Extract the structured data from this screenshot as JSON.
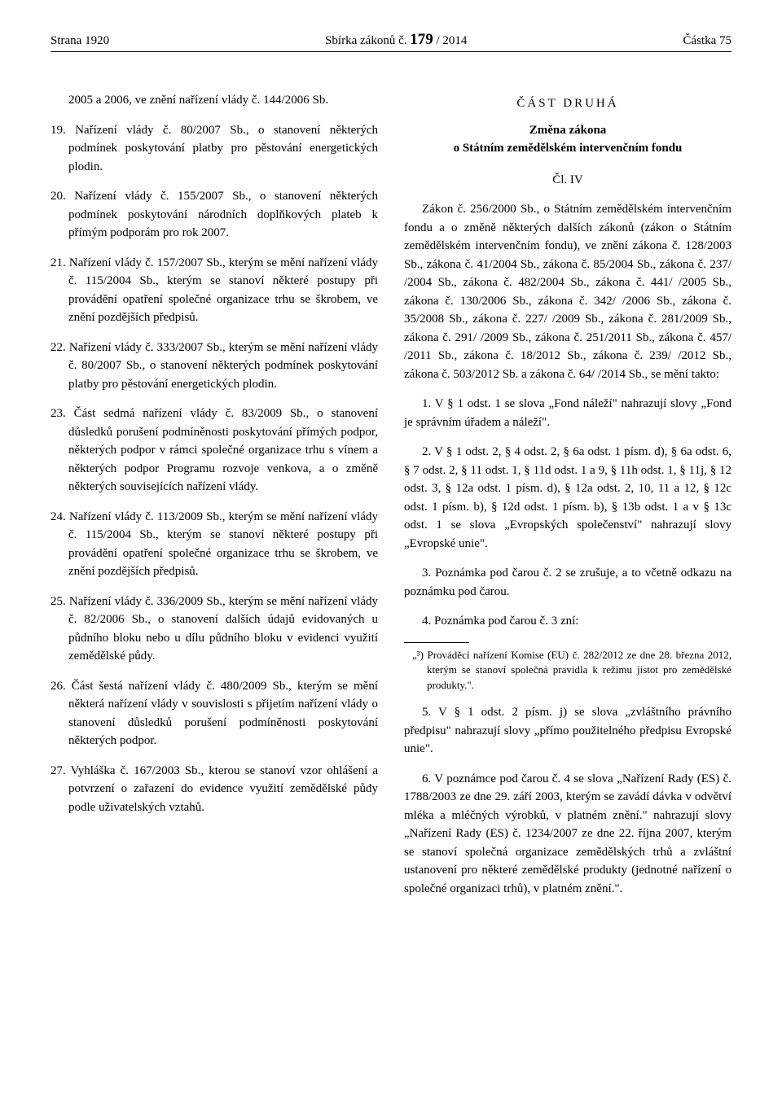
{
  "header": {
    "left": "Strana 1920",
    "center_prefix": "Sbírka zákonů č. ",
    "center_bold": "179",
    "center_suffix": " / 2014",
    "right": "Částka 75"
  },
  "left_intro": "2005 a 2006, ve znění nařízení vlády č. 144/2006 Sb.",
  "items": [
    {
      "n": "19.",
      "t": "Nařízení vlády č. 80/2007 Sb., o stanovení některých podmínek poskytování platby pro pěstování energetických plodin."
    },
    {
      "n": "20.",
      "t": "Nařízení vlády č. 155/2007 Sb., o stanovení některých podmínek poskytování národních doplňkových plateb k přímým podporám pro rok 2007."
    },
    {
      "n": "21.",
      "t": "Nařízení vlády č. 157/2007 Sb., kterým se mění nařízení vlády č. 115/2004 Sb., kterým se stanoví některé postupy při provádění opatření společné organizace trhu se škrobem, ve znění pozdějších předpisů."
    },
    {
      "n": "22.",
      "t": "Nařízení vlády č. 333/2007 Sb., kterým se mění nařízení vlády č. 80/2007 Sb., o stanovení některých podmínek poskytování platby pro pěstování energetických plodin."
    },
    {
      "n": "23.",
      "t": "Část sedmá nařízení vlády č. 83/2009 Sb., o stanovení důsledků porušení podmíněnosti poskytování přímých podpor, některých podpor v rámci společné organizace trhu s vínem a některých podpor Programu rozvoje venkova, a o změně některých souvisejících nařízení vlády."
    },
    {
      "n": "24.",
      "t": "Nařízení vlády č. 113/2009 Sb., kterým se mění nařízení vlády č. 115/2004 Sb., kterým se stanoví některé postupy při provádění opatření společné organizace trhu se škrobem, ve znění pozdějších předpisů."
    },
    {
      "n": "25.",
      "t": "Nařízení vlády č. 336/2009 Sb., kterým se mění nařízení vlády č. 82/2006 Sb., o stanovení dalších údajů evidovaných u půdního bloku nebo u dílu půdního bloku v evidenci využití zemědělské půdy."
    },
    {
      "n": "26.",
      "t": "Část šestá nařízení vlády č. 480/2009 Sb., kterým se mění některá nařízení vlády v souvislosti s přijetím nařízení vlády o stanovení důsledků porušení podmíněnosti poskytování některých podpor."
    },
    {
      "n": "27.",
      "t": "Vyhláška č. 167/2003 Sb., kterou se stanoví vzor ohlášení a potvrzení o zařazení do evidence využití zemědělské půdy podle uživatelských vztahů."
    }
  ],
  "part2": {
    "title": "ČÁST DRUHÁ",
    "subtitle_line1": "Změna zákona",
    "subtitle_line2": "o Státním zemědělském intervenčním fondu",
    "cl": "Čl. IV",
    "intro": "Zákon č. 256/2000 Sb., o Státním zemědělském intervenčním fondu a o změně některých dalších zákonů (zákon o Státním zemědělském intervenčním fondu), ve znění zákona č. 128/2003 Sb., zákona č. 41/2004 Sb., zákona č. 85/2004 Sb., zákona č. 237/ /2004 Sb., zákona č. 482/2004 Sb., zákona č. 441/ /2005 Sb., zákona č. 130/2006 Sb., zákona č. 342/ /2006 Sb., zákona č. 35/2008 Sb., zákona č. 227/ /2009 Sb., zákona č. 281/2009 Sb., zákona č. 291/ /2009 Sb., zákona č. 251/2011 Sb., zákona č. 457/ /2011 Sb., zákona č. 18/2012 Sb., zákona č. 239/ /2012 Sb., zákona č. 503/2012 Sb. a zákona č. 64/ /2014 Sb., se mění takto:",
    "paras": [
      "1. V § 1 odst. 1 se slova „Fond náleží\" nahrazují slovy „Fond je správním úřadem a náleží\".",
      "2. V § 1 odst. 2, § 4 odst. 2, § 6a odst. 1 písm. d), § 6a odst. 6, § 7 odst. 2, § 11 odst. 1, § 11d odst. 1 a 9, § 11h odst. 1, § 11j, § 12 odst. 3, § 12a odst. 1 písm. d), § 12a odst. 2, 10, 11 a 12, § 12c odst. 1 písm. b), § 12d odst. 1 písm. b), § 13b odst. 1 a v § 13c odst. 1 se slova „Evropských společenství\" nahrazují slovy „Evropské unie\".",
      "3. Poznámka pod čarou č. 2 se zrušuje, a to včetně odkazu na poznámku pod čarou.",
      "4. Poznámka pod čarou č. 3 zní:"
    ],
    "footnote": "„³) Prováděcí nařízení Komise (EU) č. 282/2012 ze dne 28. března 2012, kterým se stanoví společná pravidla k režimu jistot pro zemědělské produkty.\".",
    "paras2": [
      "5. V § 1 odst. 2 písm. j) se slova „zvláštního právního předpisu\" nahrazují slovy „přímo použitelného předpisu Evropské unie\".",
      "6. V poznámce pod čarou č. 4 se slova „Nařízení Rady (ES) č. 1788/2003 ze dne 29. září 2003, kterým se zavádí dávka v odvětví mléka a mléčných výrobků, v platném znění.\" nahrazují slovy „Nařízení Rady (ES) č. 1234/2007 ze dne 22. října 2007, kterým se stanoví společná organizace zemědělských trhů a zvláštní ustanovení pro některé zemědělské produkty (jednotné nařízení o společné organizaci trhů), v platném znění.\"."
    ]
  }
}
